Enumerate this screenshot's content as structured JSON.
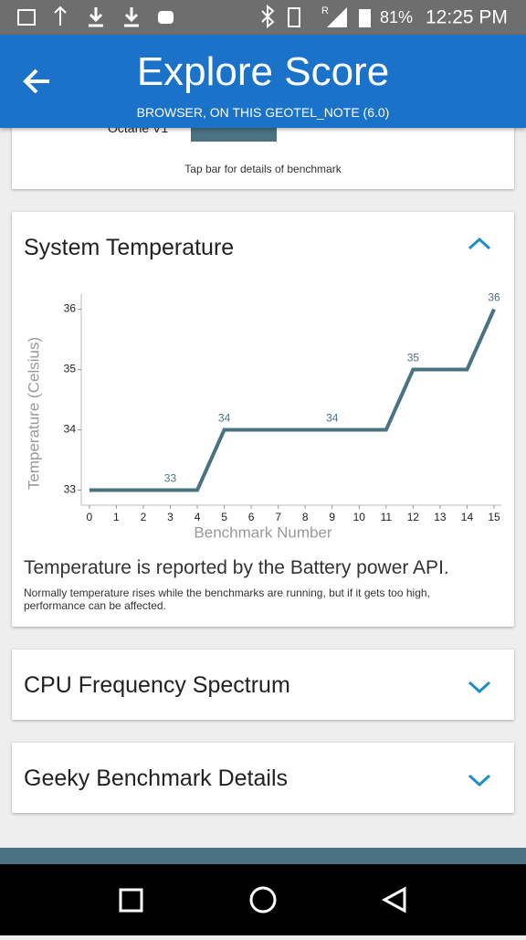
{
  "status_bar": {
    "roaming": "R",
    "battery": "81%",
    "time": "12:25 PM"
  },
  "header": {
    "title": "Explore Score",
    "subtitle": "BROWSER, ON THIS GEOTEL_NOTE (6.0)"
  },
  "top_card": {
    "label": "Octane V1",
    "hint": "Tap bar for details of benchmark"
  },
  "temperature_card": {
    "title": "System Temperature",
    "chart_data": {
      "type": "line",
      "x": [
        0,
        1,
        2,
        3,
        4,
        5,
        6,
        7,
        8,
        9,
        10,
        11,
        12,
        13,
        14,
        15
      ],
      "values": [
        33,
        33,
        33,
        33,
        33,
        34,
        34,
        34,
        34,
        34,
        34,
        34,
        35,
        35,
        35,
        36
      ],
      "value_labels": [
        null,
        null,
        null,
        "33",
        null,
        "34",
        null,
        null,
        null,
        "34",
        null,
        null,
        "35",
        null,
        null,
        "36"
      ],
      "color": "#4a7282",
      "xlabel": "Benchmark Number",
      "ylabel": "Temperature (Celsius)",
      "xlim": [
        -0.3,
        15
      ],
      "ylim": [
        32.75,
        36.25
      ],
      "xticks": [
        0,
        1,
        2,
        3,
        4,
        5,
        6,
        7,
        8,
        9,
        10,
        11,
        12,
        13,
        14,
        15
      ],
      "yticks": [
        33,
        34,
        35,
        36
      ]
    },
    "note": "Temperature is reported by the Battery power API.",
    "detail": "Normally temperature rises while the benchmarks are running, but if it gets too high, performance can be affected."
  },
  "collapsed_cards": [
    "CPU Frequency Spectrum",
    "Geeky Benchmark Details"
  ]
}
